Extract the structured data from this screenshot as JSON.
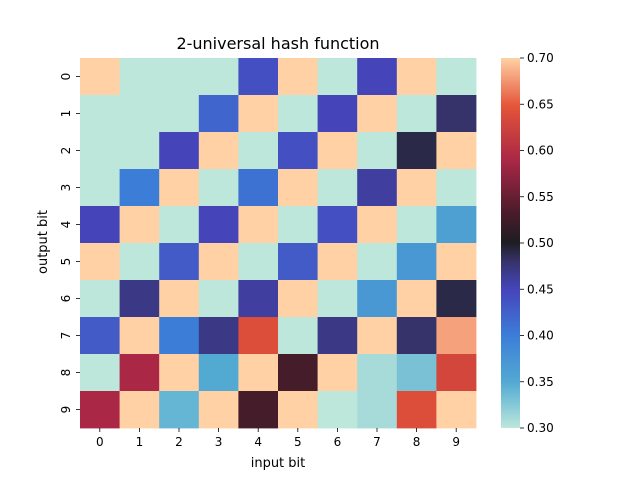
{
  "chart_data": {
    "type": "heatmap",
    "title": "2-universal hash function",
    "xlabel": "input bit",
    "ylabel": "output bit",
    "x_tick_labels": [
      "0",
      "1",
      "2",
      "3",
      "4",
      "5",
      "6",
      "7",
      "8",
      "9"
    ],
    "y_tick_labels": [
      "0",
      "1",
      "2",
      "3",
      "4",
      "5",
      "6",
      "7",
      "8",
      "9"
    ],
    "colormap": "icefire",
    "vmin": 0.3,
    "vmax": 0.7,
    "colorbar_ticks": [
      "0.30",
      "0.35",
      "0.40",
      "0.45",
      "0.50",
      "0.55",
      "0.60",
      "0.65",
      "0.70"
    ],
    "values": [
      [
        0.7,
        0.3,
        0.3,
        0.3,
        0.44,
        0.7,
        0.3,
        0.45,
        0.7,
        0.3
      ],
      [
        0.3,
        0.3,
        0.3,
        0.42,
        0.7,
        0.3,
        0.45,
        0.7,
        0.3,
        0.48
      ],
      [
        0.3,
        0.3,
        0.45,
        0.7,
        0.3,
        0.44,
        0.7,
        0.3,
        0.49,
        0.7
      ],
      [
        0.3,
        0.4,
        0.7,
        0.3,
        0.41,
        0.7,
        0.3,
        0.46,
        0.7,
        0.3
      ],
      [
        0.45,
        0.7,
        0.3,
        0.45,
        0.7,
        0.3,
        0.44,
        0.7,
        0.3,
        0.36
      ],
      [
        0.7,
        0.3,
        0.43,
        0.7,
        0.3,
        0.43,
        0.7,
        0.3,
        0.37,
        0.7
      ],
      [
        0.3,
        0.47,
        0.7,
        0.3,
        0.46,
        0.7,
        0.3,
        0.37,
        0.7,
        0.49
      ],
      [
        0.43,
        0.7,
        0.4,
        0.47,
        0.64,
        0.3,
        0.47,
        0.7,
        0.48,
        0.68
      ],
      [
        0.3,
        0.59,
        0.7,
        0.35,
        0.7,
        0.53,
        0.7,
        0.31,
        0.33,
        0.63
      ],
      [
        0.59,
        0.7,
        0.34,
        0.7,
        0.53,
        0.7,
        0.3,
        0.31,
        0.64,
        0.7
      ]
    ]
  }
}
